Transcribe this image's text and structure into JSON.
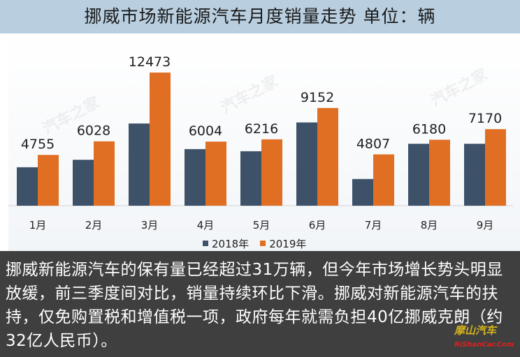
{
  "title": "挪威市场新能源汽车月度销量走势  单位：辆",
  "chart_data": {
    "type": "bar",
    "categories": [
      "1月",
      "2月",
      "3月",
      "4月",
      "5月",
      "6月",
      "7月",
      "8月",
      "9月"
    ],
    "series": [
      {
        "name": "2018年",
        "color": "#3d5268",
        "values": [
          3600,
          4300,
          7700,
          5300,
          5100,
          7800,
          2500,
          5800,
          5800
        ]
      },
      {
        "name": "2019年",
        "color": "#e06f24",
        "values": [
          4755,
          6028,
          12473,
          6004,
          6216,
          9152,
          4807,
          6180,
          7170
        ]
      }
    ],
    "data_labels": [
      "4755",
      "6028",
      "12473",
      "6004",
      "6216",
      "9152",
      "4807",
      "6180",
      "7170"
    ],
    "ylim": [
      0,
      13000
    ],
    "grid": false,
    "legend": "bottom"
  },
  "description": "挪威新能源汽车的保有量已经超过31万辆，但今年市场增长势头明显放缓，前三季度间对比，销量持续环比下滑。挪威对新能源汽车的扶持，仅免购置税和增值税一项，政府每年就需负担40亿挪威克朗（约32亿人民币）。",
  "watermark_text": "汽车之家",
  "stamp_text": "摩山汽车",
  "stamp_sub": "RiShanCar.Com"
}
